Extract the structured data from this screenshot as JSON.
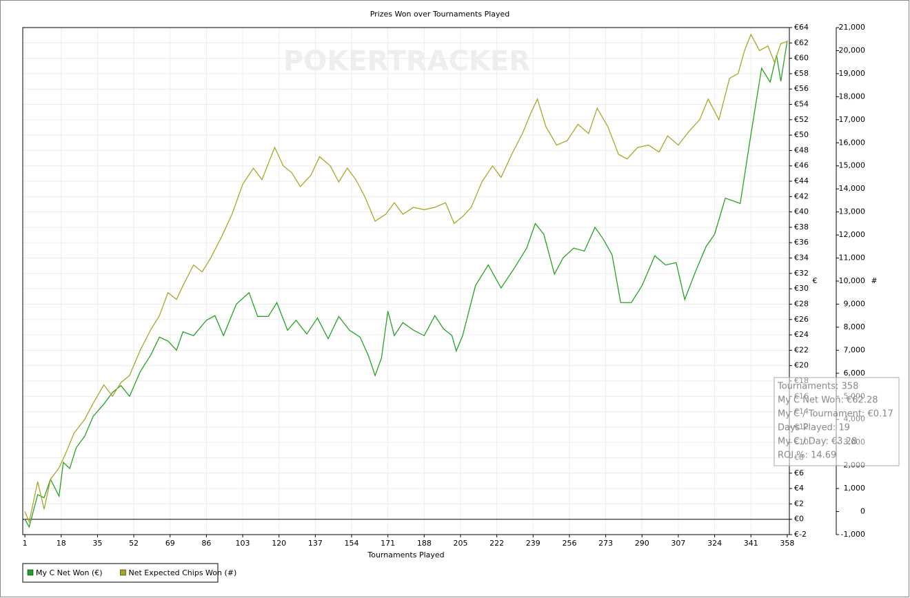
{
  "chart_data": {
    "type": "line",
    "title": "Prizes Won over Tournaments Played",
    "watermark": "POKERTRACKER",
    "x_label": "Tournaments Played",
    "y_label": "€",
    "y2_label": "#",
    "xlim": [
      0,
      359
    ],
    "xticks": [
      1,
      18,
      35,
      52,
      69,
      86,
      103,
      120,
      137,
      154,
      171,
      188,
      205,
      222,
      239,
      256,
      273,
      290,
      307,
      324,
      341,
      358
    ],
    "ylim": [
      -2,
      64
    ],
    "yticks": [
      {
        "value": -2,
        "label": "€-2"
      },
      {
        "value": 0,
        "label": "€0"
      },
      {
        "value": 2,
        "label": "€2"
      },
      {
        "value": 4,
        "label": "€4"
      },
      {
        "value": 6,
        "label": "€6"
      },
      {
        "value": 8,
        "label": "€8"
      },
      {
        "value": 10,
        "label": "€10"
      },
      {
        "value": 12,
        "label": "€12"
      },
      {
        "value": 14,
        "label": "€14"
      },
      {
        "value": 16,
        "label": "€16"
      },
      {
        "value": 18,
        "label": "€18"
      },
      {
        "value": 20,
        "label": "€20"
      },
      {
        "value": 22,
        "label": "€22"
      },
      {
        "value": 24,
        "label": "€24"
      },
      {
        "value": 26,
        "label": "€26"
      },
      {
        "value": 28,
        "label": "€28"
      },
      {
        "value": 30,
        "label": "€30"
      },
      {
        "value": 32,
        "label": "€32"
      },
      {
        "value": 34,
        "label": "€34"
      },
      {
        "value": 36,
        "label": "€36"
      },
      {
        "value": 38,
        "label": "€38"
      },
      {
        "value": 40,
        "label": "€40"
      },
      {
        "value": 42,
        "label": "€42"
      },
      {
        "value": 44,
        "label": "€44"
      },
      {
        "value": 46,
        "label": "€46"
      },
      {
        "value": 48,
        "label": "€48"
      },
      {
        "value": 50,
        "label": "€50"
      },
      {
        "value": 52,
        "label": "€52"
      },
      {
        "value": 54,
        "label": "€54"
      },
      {
        "value": 56,
        "label": "€56"
      },
      {
        "value": 58,
        "label": "€58"
      },
      {
        "value": 60,
        "label": "€60"
      },
      {
        "value": 62,
        "label": "€62"
      },
      {
        "value": 64,
        "label": "€64"
      }
    ],
    "y2lim": [
      -1000,
      21000
    ],
    "y2ticks": [
      {
        "value": -1000,
        "label": "-1,000"
      },
      0,
      {
        "value": 1000,
        "label": "1,000"
      },
      {
        "value": 2000,
        "label": "2,000"
      },
      {
        "value": 3000,
        "label": "3,000"
      },
      {
        "value": 4000,
        "label": "4,000"
      },
      {
        "value": 5000,
        "label": "5,000"
      },
      {
        "value": 6000,
        "label": "6,000"
      },
      {
        "value": 7000,
        "label": "7,000"
      },
      {
        "value": 8000,
        "label": "8,000"
      },
      {
        "value": 9000,
        "label": "9,000"
      },
      {
        "value": 10000,
        "label": "10,000"
      },
      {
        "value": 11000,
        "label": "11,000"
      },
      {
        "value": 12000,
        "label": "12,000"
      },
      {
        "value": 13000,
        "label": "13,000"
      },
      {
        "value": 14000,
        "label": "14,000"
      },
      {
        "value": 15000,
        "label": "15,000"
      },
      {
        "value": 16000,
        "label": "16,000"
      },
      {
        "value": 17000,
        "label": "17,000"
      },
      {
        "value": 18000,
        "label": "18,000"
      },
      {
        "value": 19000,
        "label": "19,000"
      },
      {
        "value": 20000,
        "label": "20,000"
      },
      {
        "value": 21000,
        "label": "21,000"
      }
    ],
    "grid": true,
    "legend": "bottom-left",
    "series": [
      {
        "name": "My C Net Won (€)",
        "color": "#22a322",
        "axis": "y",
        "x": [
          1,
          3,
          7,
          10,
          13,
          17,
          19,
          22,
          25,
          29,
          33,
          38,
          42,
          46,
          50,
          55,
          60,
          64,
          68,
          72,
          75,
          80,
          86,
          90,
          94,
          100,
          106,
          110,
          115,
          119,
          124,
          128,
          133,
          138,
          143,
          148,
          153,
          158,
          162,
          165,
          168,
          171,
          174,
          178,
          183,
          188,
          193,
          197,
          201,
          203,
          206,
          212,
          218,
          224,
          230,
          236,
          240,
          244,
          249,
          253,
          258,
          263,
          268,
          272,
          276,
          280,
          285,
          290,
          296,
          301,
          306,
          310,
          315,
          320,
          324,
          329,
          333,
          336,
          341,
          346,
          350,
          353,
          355,
          358
        ],
        "values": [
          0,
          -1,
          3.2,
          2.8,
          5.2,
          3,
          7.4,
          6.6,
          9.3,
          10.8,
          13.4,
          15,
          16.5,
          17.4,
          16,
          19.2,
          21.4,
          23.7,
          23.2,
          22,
          24.4,
          23.9,
          25.9,
          26.5,
          23.9,
          28,
          29.5,
          26.4,
          26.4,
          28.2,
          24.6,
          25.9,
          24.1,
          26.2,
          23.5,
          26.4,
          24.6,
          23.7,
          21.2,
          18.7,
          21,
          27.1,
          23.9,
          25.6,
          24.6,
          23.9,
          26.5,
          24.8,
          23.9,
          21.9,
          23.9,
          30.4,
          33.1,
          30.1,
          32.6,
          35.3,
          38.5,
          37.1,
          31.9,
          34,
          35.3,
          34.9,
          38,
          36.4,
          34.4,
          28.2,
          28.2,
          30.4,
          34.3,
          33.1,
          33.4,
          28.6,
          32.2,
          35.5,
          37.1,
          41.8,
          41.4,
          41.1,
          50.1,
          58.7,
          56.9,
          60.4,
          57,
          62.28
        ]
      },
      {
        "name": "Net Expected Chips Won (#)",
        "color": "#a9a626",
        "axis": "y2",
        "x": [
          1,
          3,
          7,
          10,
          13,
          17,
          20,
          24,
          29,
          33,
          38,
          42,
          46,
          50,
          55,
          60,
          64,
          68,
          72,
          75,
          80,
          84,
          88,
          93,
          98,
          103,
          108,
          112,
          118,
          122,
          126,
          130,
          135,
          139,
          144,
          148,
          152,
          156,
          160,
          165,
          170,
          174,
          178,
          183,
          188,
          193,
          198,
          202,
          206,
          210,
          215,
          220,
          224,
          229,
          234,
          238,
          241,
          245,
          250,
          255,
          260,
          265,
          269,
          274,
          279,
          283,
          288,
          293,
          298,
          302,
          307,
          312,
          317,
          321,
          326,
          331,
          335,
          338,
          341,
          345,
          349,
          352,
          355,
          358
        ],
        "values": [
          0,
          -450,
          1300,
          100,
          1400,
          1900,
          2500,
          3400,
          4000,
          4700,
          5500,
          5000,
          5600,
          5900,
          7000,
          7900,
          8500,
          9500,
          9200,
          9800,
          10700,
          10400,
          11000,
          11900,
          12900,
          14200,
          14900,
          14400,
          15800,
          15000,
          14700,
          14100,
          14600,
          15400,
          15000,
          14300,
          14900,
          14400,
          13700,
          12600,
          12900,
          13400,
          12900,
          13200,
          13100,
          13200,
          13400,
          12500,
          12800,
          13200,
          14300,
          15000,
          14500,
          15500,
          16400,
          17300,
          17900,
          16700,
          15900,
          16100,
          16800,
          16400,
          17500,
          16700,
          15500,
          15300,
          15800,
          15900,
          15600,
          16300,
          15900,
          16500,
          17000,
          17900,
          17000,
          18800,
          19000,
          20000,
          20700,
          20000,
          20200,
          19500,
          20300,
          20400
        ]
      }
    ],
    "tooltip": [
      "Tournaments: 358",
      "My C Net Won: €62.28",
      "My C / Tournament: €0.17",
      "Days Played: 19",
      "My C / Day: €3.28",
      "ROI %: 14.69"
    ]
  }
}
